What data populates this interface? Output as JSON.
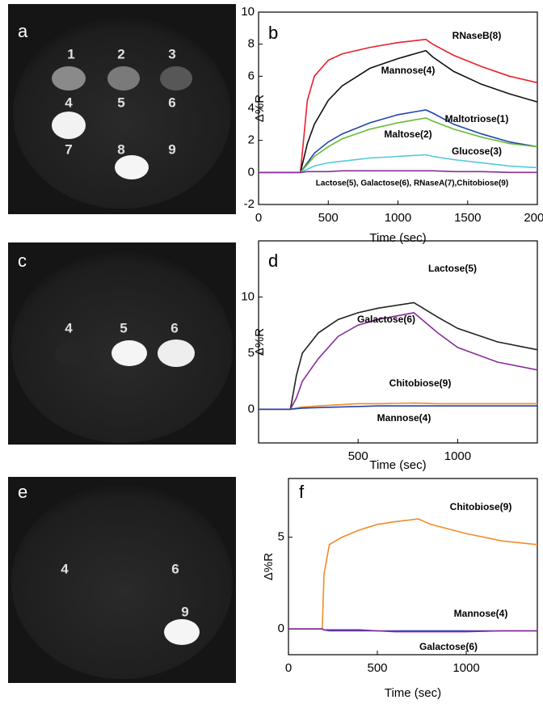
{
  "images": [
    {
      "label": "a",
      "numbers": [
        "1",
        "2",
        "3",
        "4",
        "5",
        "6",
        "7",
        "8",
        "9"
      ]
    },
    {
      "label": "c",
      "numbers": [
        "4",
        "5",
        "6"
      ]
    },
    {
      "label": "e",
      "numbers": [
        "4",
        "6",
        "9"
      ]
    }
  ],
  "chart_data": [
    {
      "type": "line",
      "panel_label": "b",
      "x_label": "Time (sec)",
      "y_label": "Δ%R",
      "xlim": [
        0,
        2000
      ],
      "ylim": [
        -2,
        10
      ],
      "xticks": [
        0,
        500,
        1000,
        1500,
        2000
      ],
      "yticks": [
        -2,
        0,
        2,
        4,
        6,
        8,
        10
      ],
      "x": [
        0,
        300,
        350,
        400,
        500,
        600,
        800,
        1000,
        1200,
        1250,
        1400,
        1600,
        1800,
        2000
      ],
      "series": [
        {
          "name": "RNaseB(8)",
          "color": "#e8202a",
          "values": [
            0,
            0,
            4.5,
            6,
            7,
            7.4,
            7.8,
            8.1,
            8.3,
            8.0,
            7.3,
            6.6,
            6.0,
            5.6
          ]
        },
        {
          "name": "Mannose(4)",
          "color": "#111111",
          "values": [
            0,
            0,
            1.8,
            3,
            4.5,
            5.4,
            6.5,
            7.1,
            7.6,
            7.2,
            6.3,
            5.5,
            4.9,
            4.4
          ]
        },
        {
          "name": "Maltotriose(1)",
          "color": "#2244aa",
          "values": [
            0,
            0,
            0.6,
            1.2,
            1.9,
            2.4,
            3.1,
            3.6,
            3.9,
            3.7,
            3.0,
            2.4,
            1.9,
            1.6
          ]
        },
        {
          "name": "Maltose(2)",
          "color": "#66bb33",
          "values": [
            0,
            0,
            0.5,
            1,
            1.6,
            2.1,
            2.7,
            3.1,
            3.4,
            3.2,
            2.7,
            2.2,
            1.8,
            1.6
          ]
        },
        {
          "name": "Glucose(3)",
          "color": "#55c8d8",
          "values": [
            0,
            0,
            0.2,
            0.4,
            0.6,
            0.7,
            0.9,
            1.0,
            1.1,
            1.0,
            0.8,
            0.6,
            0.4,
            0.3
          ]
        },
        {
          "name": "Lactose(5), Galactose(6), RNaseA(7),Chitobiose(9)",
          "color": "#8a2d9a",
          "values": [
            0,
            0,
            0.05,
            0.05,
            0.05,
            0.1,
            0.1,
            0.1,
            0.1,
            0.1,
            0.05,
            0.05,
            0,
            0
          ]
        }
      ]
    },
    {
      "type": "line",
      "panel_label": "d",
      "x_label": "Time (sec)",
      "y_label": "Δ%R",
      "xlim": [
        0,
        1400
      ],
      "ylim": [
        -3,
        15
      ],
      "xticks": [
        500,
        1000
      ],
      "yticks": [
        0,
        5,
        10
      ],
      "x": [
        0,
        160,
        190,
        220,
        300,
        400,
        500,
        600,
        780,
        900,
        1000,
        1200,
        1400
      ],
      "series": [
        {
          "name": "Lactose(5)",
          "color": "#222222",
          "values": [
            0,
            0,
            3,
            5,
            6.8,
            8,
            8.6,
            9,
            9.5,
            8.2,
            7.2,
            6,
            5.3
          ]
        },
        {
          "name": "Galactose(6)",
          "color": "#8a2d9a",
          "values": [
            0,
            0,
            1,
            2.5,
            4.5,
            6.5,
            7.5,
            8,
            8.6,
            6.8,
            5.5,
            4.2,
            3.5
          ]
        },
        {
          "name": "Chitobiose(9)",
          "color": "#f28c28",
          "values": [
            0,
            0,
            0.1,
            0.2,
            0.3,
            0.4,
            0.5,
            0.5,
            0.55,
            0.5,
            0.5,
            0.5,
            0.5
          ]
        },
        {
          "name": "Mannose(4)",
          "color": "#2244aa",
          "values": [
            0,
            0,
            0.05,
            0.1,
            0.15,
            0.2,
            0.25,
            0.3,
            0.3,
            0.3,
            0.3,
            0.3,
            0.3
          ]
        }
      ]
    },
    {
      "type": "line",
      "panel_label": "f",
      "x_label": "Time (sec)",
      "y_label": "Δ%R",
      "xlim": [
        0,
        1400
      ],
      "ylim": [
        -1.4,
        8.2
      ],
      "xticks": [
        0,
        500,
        1000
      ],
      "yticks": [
        0,
        5
      ],
      "x": [
        0,
        190,
        200,
        230,
        300,
        400,
        500,
        600,
        730,
        800,
        1000,
        1200,
        1400
      ],
      "series": [
        {
          "name": "Chitobiose(9)",
          "color": "#f28c28",
          "values": [
            0,
            0,
            3,
            4.6,
            5,
            5.4,
            5.7,
            5.85,
            6,
            5.7,
            5.2,
            4.8,
            4.6
          ]
        },
        {
          "name": "Mannose(4)",
          "color": "#2244aa",
          "values": [
            0,
            0,
            -0.05,
            -0.05,
            -0.05,
            -0.05,
            -0.1,
            -0.1,
            -0.1,
            -0.1,
            -0.1,
            -0.1,
            -0.1
          ]
        },
        {
          "name": "Galactose(6)",
          "color": "#8a2d9a",
          "values": [
            0,
            0,
            -0.05,
            -0.1,
            -0.1,
            -0.1,
            -0.1,
            -0.15,
            -0.15,
            -0.15,
            -0.15,
            -0.1,
            -0.1
          ]
        }
      ]
    }
  ]
}
